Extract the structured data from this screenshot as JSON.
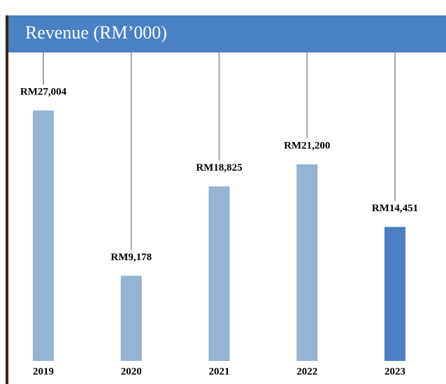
{
  "chart_data": {
    "type": "bar",
    "title": "Revenue (RM’000)",
    "categories": [
      "2019",
      "2020",
      "2021",
      "2022",
      "2023"
    ],
    "values": [
      27004,
      9178,
      18825,
      21200,
      14451
    ],
    "value_labels": [
      "RM27,004",
      "RM9,178",
      "RM18,825",
      "RM21,200",
      "RM14,451"
    ],
    "colors": [
      "#95b3d3",
      "#95b3d3",
      "#95b3d3",
      "#95b3d3",
      "#4a7fc3"
    ]
  }
}
